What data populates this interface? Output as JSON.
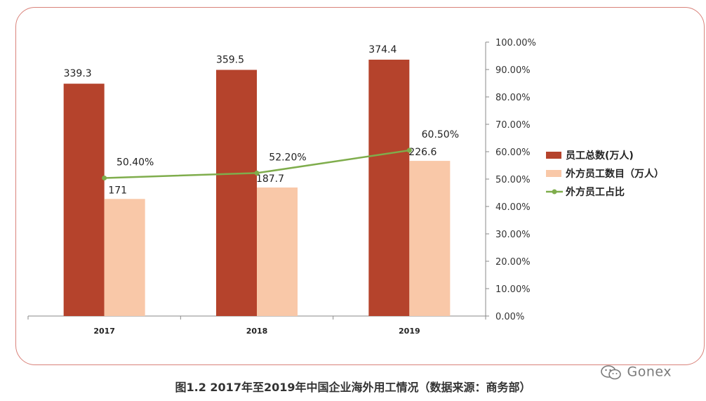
{
  "chart_data": {
    "type": "bar",
    "categories": [
      "2017",
      "2018",
      "2019"
    ],
    "series": [
      {
        "name": "员工总数(万人)",
        "type": "bar",
        "values": [
          339.3,
          359.5,
          374.4
        ],
        "color": "#b5432c"
      },
      {
        "name": "外方员工数目（万人）",
        "type": "bar",
        "values": [
          171,
          187.7,
          226.6
        ],
        "color": "#f9c8a8"
      },
      {
        "name": "外方员工占比",
        "type": "line",
        "axis": "right",
        "values": [
          50.4,
          52.2,
          60.5
        ],
        "labels": [
          "50.40%",
          "52.20%",
          "60.50%"
        ],
        "color": "#7fad4c"
      }
    ],
    "bar_labels": [
      [
        "339.3",
        "359.5",
        "374.4"
      ],
      [
        "171",
        "187.7",
        "226.6"
      ]
    ],
    "y_left_range": [
      0,
      400
    ],
    "y_right_range": [
      0,
      100
    ],
    "y_right_ticks": [
      "0.00%",
      "10.00%",
      "20.00%",
      "30.00%",
      "40.00%",
      "50.00%",
      "60.00%",
      "70.00%",
      "80.00%",
      "90.00%",
      "100.00%"
    ],
    "legend_position": "right",
    "grid": false
  },
  "caption": "图1.2 2017年至2019年中国企业海外用工情况（数据来源：商务部）",
  "watermark": {
    "text": "Gonex",
    "icon": "wechat-icon"
  }
}
